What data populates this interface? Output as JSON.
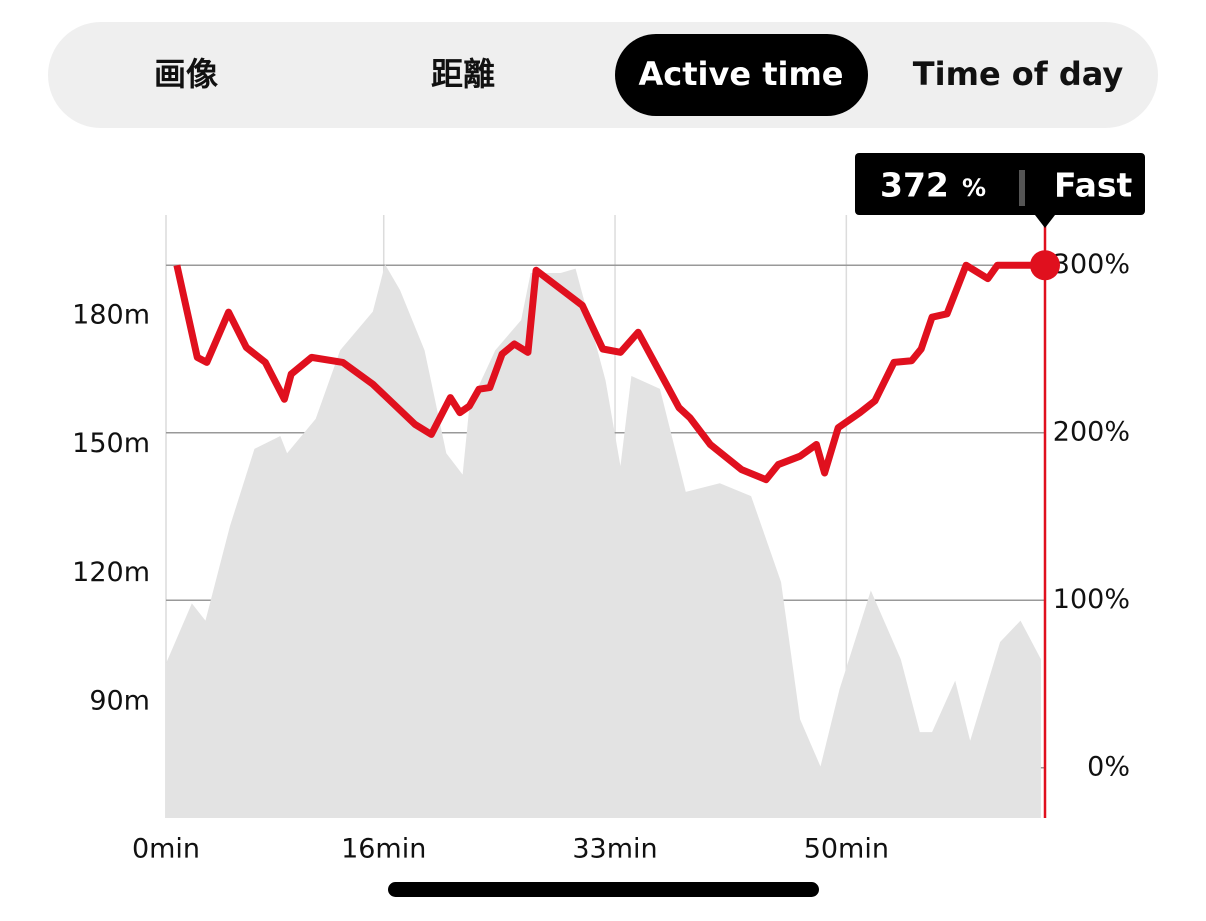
{
  "tabs": {
    "items": [
      "画像",
      "距離",
      "Active time",
      "Time of day"
    ],
    "selected": 2
  },
  "tooltip": {
    "value": "372",
    "unit": "%",
    "label": "Fast"
  },
  "chart_data": {
    "type": "line",
    "xlim": [
      0,
      64.6
    ],
    "xticks": [
      {
        "value": 0,
        "label": "0min"
      },
      {
        "value": 16,
        "label": "16min"
      },
      {
        "value": 33,
        "label": "33min"
      },
      {
        "value": 50,
        "label": "50min"
      }
    ],
    "ylim": [
      63,
      203.5
    ],
    "yticks": [
      {
        "value": 90,
        "label": "90m"
      },
      {
        "value": 120,
        "label": "120m"
      },
      {
        "value": 150,
        "label": "150m"
      },
      {
        "value": 180,
        "label": "180m"
      }
    ],
    "y2lim": [
      -30,
      330
    ],
    "y2ticks": [
      {
        "value": 0,
        "label": "0%"
      },
      {
        "value": 100,
        "label": "100%"
      },
      {
        "value": 200,
        "label": "200%"
      },
      {
        "value": 300,
        "label": "300%"
      }
    ],
    "grid": true,
    "series": [
      {
        "kind": "area",
        "color": "#e3e3e3",
        "x": [
          0,
          1.9,
          2.9,
          4.7,
          6.5,
          8.4,
          8.9,
          11,
          12.8,
          15.2,
          16.1,
          17.2,
          19,
          20.6,
          21.8,
          22.3,
          24.2,
          26.1,
          26.8,
          29,
          30.1,
          32.3,
          33.4,
          34.2,
          36.3,
          38.2,
          40.7,
          43,
          45.2,
          46.6,
          48.1,
          49.5,
          51.8,
          54,
          55.4,
          56.3,
          58,
          59.1,
          61.3,
          62.8,
          64.3
        ],
        "values": [
          99,
          113,
          109,
          131,
          149,
          152,
          148,
          156,
          172,
          181,
          192,
          186,
          172,
          148,
          143,
          159,
          172,
          179,
          190,
          190,
          191,
          165,
          145,
          166,
          163,
          139,
          141,
          138,
          118,
          86,
          75,
          93,
          116,
          100,
          83,
          83,
          95,
          81,
          104,
          109,
          100
        ]
      },
      {
        "kind": "line",
        "axis": "y2",
        "color": "#e0101e",
        "x": [
          0.8,
          2.3,
          3,
          4.6,
          5.9,
          7.3,
          8.7,
          9.2,
          10.7,
          13,
          15.2,
          18.3,
          19.5,
          20.9,
          21.6,
          22.3,
          23,
          23.8,
          24.7,
          25.6,
          26.6,
          27.2,
          30.6,
          32.1,
          33.4,
          34.7,
          37.7,
          38.5,
          40,
          42.3,
          44.1,
          45,
          46.6,
          47.8,
          48.4,
          49.4,
          51,
          52.1,
          53.5,
          54.8,
          55.5,
          56.3,
          57.4,
          58.8,
          60.4,
          61.1,
          64.6
        ],
        "values": [
          300,
          245,
          242,
          272,
          251,
          242,
          220,
          235,
          245,
          242,
          229,
          205,
          199,
          221,
          212,
          216,
          226,
          227,
          247,
          253,
          248,
          297,
          276,
          250,
          248,
          260,
          215,
          209,
          193,
          178,
          172,
          181,
          186,
          193,
          176,
          203,
          212,
          219,
          242,
          243,
          250,
          269,
          271,
          300,
          292,
          300,
          300
        ]
      }
    ]
  }
}
